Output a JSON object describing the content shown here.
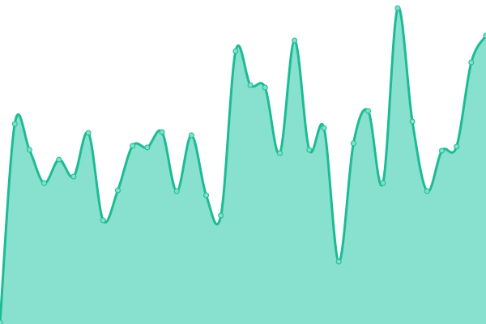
{
  "chart_data": {
    "type": "area",
    "title": "",
    "xlabel": "",
    "ylabel": "",
    "x": [
      0,
      1,
      2,
      3,
      4,
      5,
      6,
      7,
      8,
      9,
      10,
      11,
      12,
      13,
      14,
      15,
      16,
      17,
      18,
      19,
      20,
      21,
      22,
      23,
      24,
      25,
      26,
      27,
      28,
      29,
      30,
      31,
      32,
      33
    ],
    "values": [
      2,
      247,
      215,
      174,
      203,
      182,
      236,
      128,
      165,
      220,
      218,
      237,
      164,
      233,
      159,
      134,
      337,
      295,
      292,
      211,
      350,
      215,
      242,
      77,
      223,
      263,
      174,
      390,
      250,
      164,
      214,
      219,
      323,
      356
    ],
    "ylim": [
      0,
      400
    ],
    "grid": false,
    "axes_visible": false,
    "curve": "smooth",
    "markers": true,
    "colors": {
      "line": "#1dbb94",
      "fill": "#88e0cf",
      "marker_fill": "#7fe0c8",
      "marker_stroke": "#1dbb94"
    }
  }
}
